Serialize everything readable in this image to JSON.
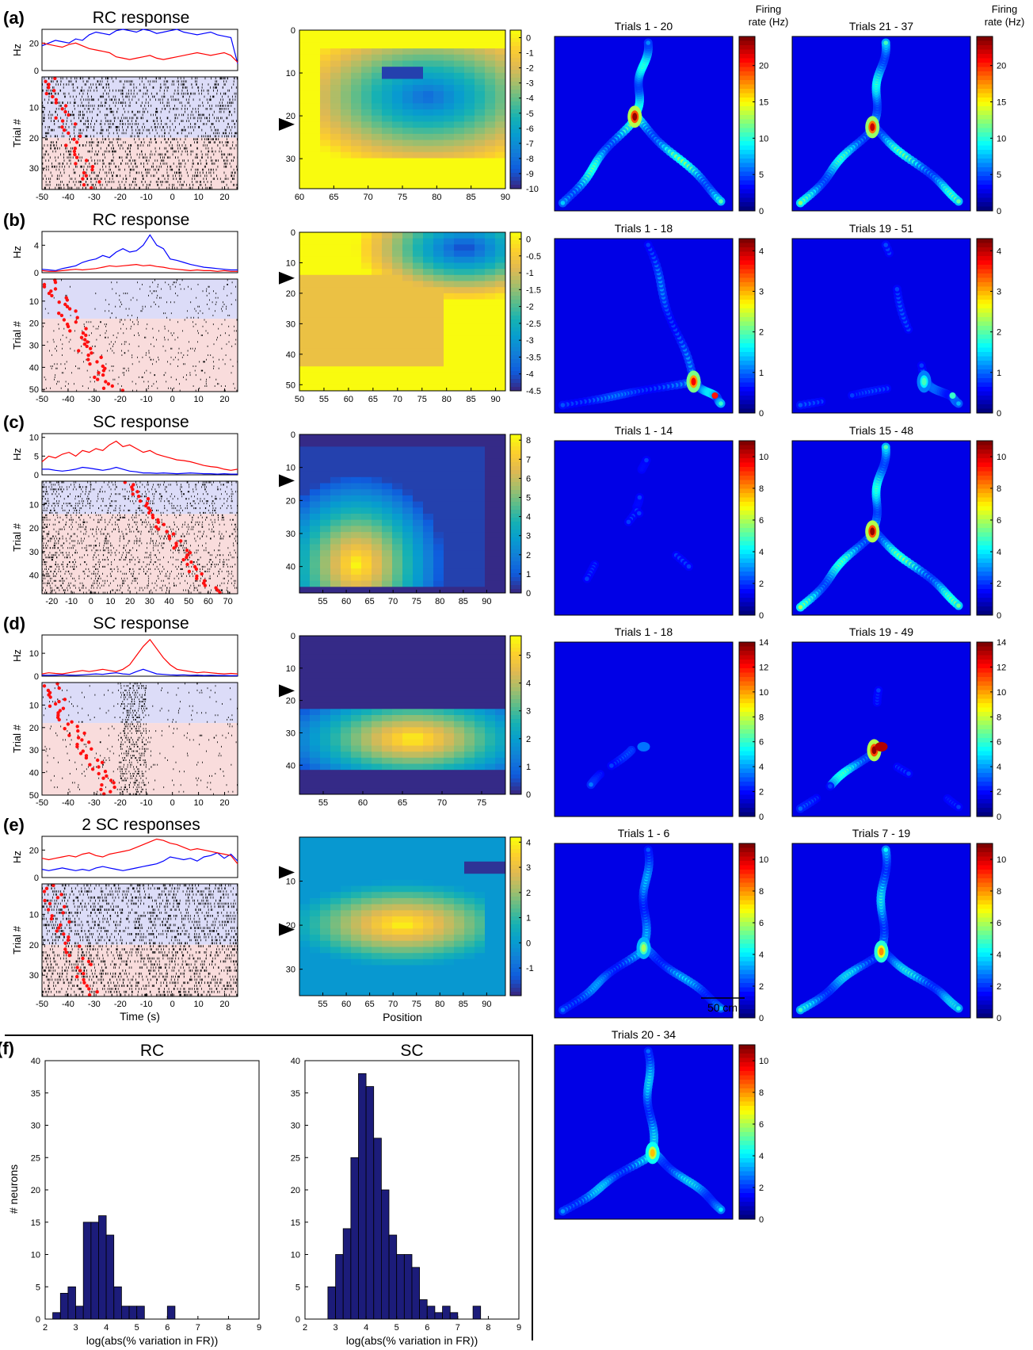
{
  "rows": [
    {
      "letter": "(a)",
      "title": "RC response",
      "hz": {
        "ymax": 30,
        "ticks": [
          0,
          20
        ],
        "label": "Hz",
        "blue": [
          18,
          20,
          22,
          21,
          20,
          23,
          22,
          26,
          28,
          27,
          26,
          29,
          30,
          29,
          28,
          30,
          29,
          27,
          28,
          29,
          30,
          28,
          27,
          26,
          27,
          28,
          26,
          25,
          24,
          5
        ],
        "red": [
          20,
          19,
          18,
          17,
          19,
          20,
          18,
          16,
          15,
          14,
          13,
          10,
          9,
          8,
          9,
          10,
          11,
          9,
          8,
          9,
          10,
          11,
          12,
          13,
          12,
          11,
          12,
          13,
          11,
          6
        ]
      },
      "raster": {
        "xmin": -50,
        "xmax": 25,
        "trials": 37,
        "split": 20,
        "density": 0.62,
        "xticks": [
          -50,
          -40,
          -30,
          -20,
          -10,
          0,
          10,
          20
        ],
        "yticks": [
          10,
          20,
          30
        ],
        "ylabel": "Trial #"
      },
      "heat": {
        "xmin": 60,
        "xmax": 90,
        "xticks": [
          60,
          65,
          70,
          75,
          80,
          85,
          90
        ],
        "ymin": 0,
        "ymax": 37,
        "yticks": [
          0,
          10,
          20,
          30
        ],
        "arrows": [
          22
        ],
        "cb_min": -10,
        "cb_max": 0.5,
        "cb_ticks": [
          0,
          -1,
          -2,
          -3,
          -4,
          -5,
          -6,
          -7,
          -8,
          -9,
          -10
        ],
        "mode": "neg-ring"
      },
      "maps": [
        {
          "title": "Trials 1 - 20",
          "cb_max": 24,
          "cb_ticks": [
            0,
            5,
            10,
            15,
            20
          ],
          "peak": 1.0,
          "hot": [
            0.45,
            0.46
          ]
        },
        {
          "title": "Trials 21 - 37",
          "cb_max": 24,
          "cb_ticks": [
            0,
            5,
            10,
            15,
            20
          ],
          "peak": 0.95,
          "hot": [
            0.45,
            0.52
          ]
        }
      ],
      "cb_label_1": "Firing",
      "cb_label_2": "rate (Hz)"
    },
    {
      "letter": "(b)",
      "title": "RC response",
      "hz": {
        "ymax": 6,
        "ticks": [
          0,
          4
        ],
        "label": "Hz",
        "blue": [
          0.5,
          0.4,
          0.3,
          0.6,
          0.8,
          1.0,
          1.5,
          1.8,
          2.0,
          2.5,
          2.2,
          3.0,
          3.5,
          3.0,
          3.2,
          4.0,
          5.5,
          4.0,
          3.5,
          2.0,
          1.8,
          1.5,
          1.2,
          1.0,
          0.8,
          0.7,
          0.6,
          0.5,
          0.4,
          0.4
        ],
        "red": [
          0.3,
          0.2,
          0.2,
          0.3,
          0.4,
          0.5,
          0.4,
          0.5,
          0.6,
          0.8,
          1.0,
          0.9,
          1.0,
          1.1,
          1.2,
          1.0,
          1.1,
          0.9,
          0.8,
          0.6,
          0.5,
          0.4,
          0.3,
          0.4,
          0.3,
          0.3,
          0.2,
          0.3,
          0.2,
          0.2
        ]
      },
      "raster": {
        "xmin": -50,
        "xmax": 25,
        "trials": 51,
        "split": 18,
        "density": 0.12,
        "xticks": [
          -50,
          -40,
          -30,
          -20,
          -10,
          0,
          10,
          20
        ],
        "yticks": [
          10,
          20,
          30,
          40,
          50
        ],
        "ylabel": "Trial #"
      },
      "heat": {
        "xmin": 50,
        "xmax": 92,
        "xticks": [
          50,
          55,
          60,
          65,
          70,
          75,
          80,
          85,
          90
        ],
        "ymin": 0,
        "ymax": 52,
        "yticks": [
          0,
          10,
          20,
          30,
          40,
          50
        ],
        "arrows": [
          15
        ],
        "cb_min": -4.5,
        "cb_max": 0.2,
        "cb_ticks": [
          0,
          -0.5,
          -1.0,
          -1.5,
          -2.0,
          -2.5,
          -3.0,
          -3.5,
          -4.0,
          -4.5
        ],
        "mode": "neg-corner"
      },
      "maps": [
        {
          "title": "Trials 1 - 18",
          "cb_max": 4.3,
          "cb_ticks": [
            0,
            1,
            2,
            3,
            4
          ],
          "peak": 0.9,
          "hot": [
            0.78,
            0.82
          ],
          "lower": true
        },
        {
          "title": "Trials 19 - 51",
          "cb_max": 4.3,
          "cb_ticks": [
            0,
            1,
            2,
            3,
            4
          ],
          "peak": 0.45,
          "hot": [
            0.74,
            0.82
          ],
          "lower": true
        }
      ]
    },
    {
      "letter": "(c)",
      "title": "SC response",
      "hz": {
        "ymax": 11,
        "ticks": [
          0,
          5,
          10
        ],
        "label": "Hz",
        "blue": [
          1.5,
          1.5,
          1.2,
          1.0,
          1.2,
          1.5,
          2.0,
          1.8,
          1.5,
          1.2,
          1.5,
          2.0,
          1.5,
          1.0,
          0.8,
          0.5,
          0.5,
          0.4,
          0.5,
          0.4,
          0.3,
          0.4,
          0.5,
          0.4,
          0.3,
          0.3,
          0.2,
          0.3,
          0.2,
          0.2
        ],
        "red": [
          3.5,
          5,
          4.5,
          5.5,
          6,
          5,
          6.5,
          6,
          7,
          6.5,
          8,
          9,
          7.5,
          8,
          7,
          6,
          6.5,
          5.5,
          5,
          4.5,
          4,
          3.8,
          3.5,
          3,
          2.5,
          2.2,
          2,
          1.5,
          1.2,
          1.5
        ]
      },
      "raster": {
        "xmin": -25,
        "xmax": 75,
        "trials": 48,
        "split": 14,
        "density": 0.45,
        "xticks": [
          -20,
          -10,
          0,
          10,
          20,
          30,
          40,
          50,
          60,
          70
        ],
        "yticks": [
          10,
          20,
          30,
          40
        ],
        "ylabel": "Trial #"
      },
      "heat": {
        "xmin": 50,
        "xmax": 94,
        "xticks": [
          55,
          60,
          65,
          70,
          75,
          80,
          85,
          90
        ],
        "ymin": 0,
        "ymax": 48,
        "yticks": [
          0,
          10,
          20,
          30,
          40
        ],
        "arrows": [
          14
        ],
        "cb_min": 0,
        "cb_max": 8.3,
        "cb_ticks": [
          8,
          7,
          6,
          5,
          4,
          3,
          2,
          1,
          0
        ],
        "mode": "pos-lowerleft"
      },
      "maps": [
        {
          "title": "Trials 1 - 14",
          "cb_max": 11,
          "cb_ticks": [
            0,
            2,
            4,
            6,
            8,
            10
          ],
          "peak": 0.1,
          "hot": [
            0.45,
            0.4
          ]
        },
        {
          "title": "Trials 15 - 48",
          "cb_max": 11,
          "cb_ticks": [
            0,
            2,
            4,
            6,
            8,
            10
          ],
          "peak": 1.0,
          "hot": [
            0.45,
            0.52
          ]
        }
      ]
    },
    {
      "letter": "(d)",
      "title": "SC response",
      "hz": {
        "ymax": 18,
        "ticks": [
          0,
          10
        ],
        "label": "Hz",
        "blue": [
          0.5,
          0.4,
          0.5,
          0.6,
          0.5,
          0.4,
          0.6,
          0.8,
          1.0,
          0.8,
          1.2,
          1.5,
          1.0,
          0.8,
          2,
          3,
          2,
          1,
          0.8,
          0.6,
          0.5,
          0.6,
          0.4,
          0.5,
          0.3,
          0.4,
          0.3,
          0.3,
          0.2,
          0.2
        ],
        "red": [
          1,
          1.5,
          1.2,
          1,
          1.5,
          2,
          2.5,
          2,
          2.5,
          3,
          2.5,
          2,
          3,
          5,
          9,
          13,
          16,
          12,
          8,
          5,
          3,
          2.5,
          2,
          1.5,
          1.8,
          1.5,
          1.2,
          1,
          1.2,
          1
        ]
      },
      "raster": {
        "xmin": -50,
        "xmax": 25,
        "trials": 50,
        "split": 18,
        "density": 0.18,
        "xticks": [
          -50,
          -40,
          -30,
          -20,
          -10,
          0,
          10,
          20
        ],
        "yticks": [
          10,
          20,
          30,
          40,
          50
        ],
        "ylabel": "Trial #"
      },
      "heat": {
        "xmin": 52,
        "xmax": 78,
        "xticks": [
          55,
          60,
          65,
          70,
          75
        ],
        "ymin": 0,
        "ymax": 49,
        "yticks": [
          0,
          10,
          20,
          30,
          40
        ],
        "arrows": [
          17
        ],
        "cb_min": 0,
        "cb_max": 5.7,
        "cb_ticks": [
          5,
          4,
          3,
          2,
          1,
          0
        ],
        "mode": "pos-band"
      },
      "maps": [
        {
          "title": "Trials 1 - 18",
          "cb_max": 14,
          "cb_ticks": [
            0,
            2,
            4,
            6,
            8,
            10,
            12,
            14
          ],
          "peak": 0.25,
          "hot": [
            0.42,
            0.62
          ],
          "left": true
        },
        {
          "title": "Trials 19 - 49",
          "cb_max": 14,
          "cb_ticks": [
            0,
            2,
            4,
            6,
            8,
            10,
            12,
            14
          ],
          "peak": 1.0,
          "hot": [
            0.46,
            0.62
          ],
          "left": true
        }
      ]
    },
    {
      "letter": "(e)",
      "title": "2 SC responses",
      "hz": {
        "ymax": 30,
        "ticks": [
          0,
          20
        ],
        "label": "Hz",
        "blue": [
          6,
          5,
          6,
          7,
          6,
          5,
          6,
          5,
          7,
          8,
          7,
          6,
          5,
          6,
          7,
          8,
          9,
          10,
          12,
          15,
          14,
          13,
          14,
          12,
          15,
          16,
          18,
          14,
          17,
          12
        ],
        "red": [
          14,
          13,
          14,
          15,
          16,
          15,
          17,
          18,
          16,
          15,
          17,
          18,
          19,
          20,
          22,
          24,
          26,
          28,
          27,
          25,
          24,
          22,
          20,
          21,
          20,
          19,
          18,
          17,
          16,
          10
        ]
      },
      "raster": {
        "xmin": -50,
        "xmax": 25,
        "trials": 37,
        "split": 20,
        "density": 0.72,
        "xticks": [
          -50,
          -40,
          -30,
          -20,
          -10,
          0,
          10,
          20
        ],
        "yticks": [
          10,
          20,
          30
        ],
        "ylabel": "Trial #",
        "xlabel": "Time (s)"
      },
      "heat": {
        "xmin": 50,
        "xmax": 94,
        "xticks": [
          55,
          60,
          65,
          70,
          75,
          80,
          85,
          90
        ],
        "ymin": 0,
        "ymax": 36,
        "yticks": [
          10,
          20,
          30
        ],
        "arrows": [
          8,
          21
        ],
        "cb_min": -2.1,
        "cb_max": 4.2,
        "cb_ticks": [
          4,
          3,
          2,
          1,
          0,
          -1
        ],
        "mode": "pos-mid",
        "xlabel": "Position"
      },
      "maps": [
        {
          "title": "Trials 1 - 6",
          "cb_max": 11,
          "cb_ticks": [
            0,
            2,
            4,
            6,
            8,
            10
          ],
          "peak": 0.55,
          "hot": [
            0.5,
            0.6
          ]
        },
        {
          "title": "Trials 7 - 19",
          "cb_max": 11,
          "cb_ticks": [
            0,
            2,
            4,
            6,
            8,
            10
          ],
          "peak": 0.75,
          "hot": [
            0.5,
            0.62
          ]
        }
      ],
      "scalebar": "50 cm"
    }
  ],
  "extra_map": {
    "title": "Trials  20 - 34",
    "cb_max": 11,
    "cb_ticks": [
      0,
      2,
      4,
      6,
      8,
      10
    ],
    "peak": 0.7,
    "hot": [
      0.55,
      0.62
    ]
  },
  "hist": {
    "letter": "(f)",
    "ylabel": "# neurons",
    "xlabel": "log(abs(% variation in FR))",
    "xticks": [
      2,
      3,
      4,
      5,
      6,
      7,
      8,
      9
    ],
    "yticks": [
      0,
      5,
      10,
      15,
      20,
      25,
      30,
      35,
      40
    ],
    "panels": [
      {
        "title": "RC",
        "bin_start": 2.25,
        "bin_width": 0.25,
        "counts": [
          1,
          4,
          5,
          2,
          15,
          15,
          16,
          13,
          5,
          2,
          2,
          2,
          0,
          0,
          0,
          2
        ]
      },
      {
        "title": "SC",
        "bin_start": 2.75,
        "bin_width": 0.25,
        "counts": [
          5,
          10,
          14,
          25,
          38,
          36,
          28,
          20,
          13,
          10,
          10,
          8,
          3,
          2,
          1,
          2,
          1,
          0,
          0,
          2
        ]
      }
    ]
  },
  "chart_data": {
    "type": "bar",
    "title": "",
    "xlabel": "log(abs(% variation in FR))",
    "ylabel": "# neurons",
    "ylim": [
      0,
      40
    ],
    "xlim": [
      2,
      9
    ],
    "series": [
      {
        "name": "RC",
        "bin_start": 2.25,
        "bin_width": 0.25,
        "values": [
          1,
          4,
          5,
          2,
          15,
          15,
          16,
          13,
          5,
          2,
          2,
          2,
          0,
          0,
          0,
          2
        ]
      },
      {
        "name": "SC",
        "bin_start": 2.75,
        "bin_width": 0.25,
        "values": [
          5,
          10,
          14,
          25,
          38,
          36,
          28,
          20,
          13,
          10,
          10,
          8,
          3,
          2,
          1,
          2,
          1,
          0,
          0,
          2
        ]
      }
    ]
  }
}
